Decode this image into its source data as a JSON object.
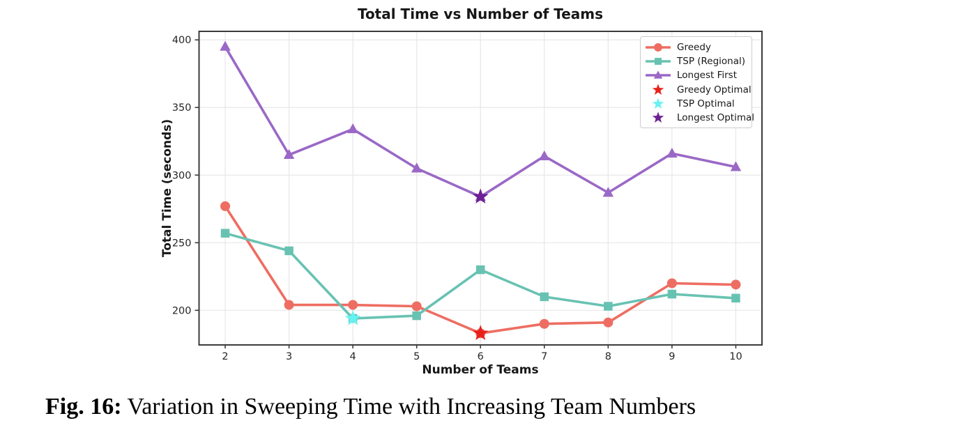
{
  "figure": {
    "caption_label": "Fig. 16:",
    "caption_text": " Variation in Sweeping Time with Increasing Team Numbers"
  },
  "chart_data": {
    "type": "line",
    "title": "Total Time vs Number of Teams",
    "xlabel": "Number of Teams",
    "ylabel": "Total Time (seconds)",
    "x": [
      2,
      3,
      4,
      5,
      6,
      7,
      8,
      9,
      10
    ],
    "xticks": [
      2,
      3,
      4,
      5,
      6,
      7,
      8,
      9,
      10
    ],
    "yticks": [
      200,
      250,
      300,
      350,
      400
    ],
    "xlim": [
      1.59,
      10.41
    ],
    "ylim": [
      174.4,
      406.3
    ],
    "grid": true,
    "legend_position": "upper right",
    "series": [
      {
        "name": "Greedy",
        "color": "#EE6D62",
        "marker": "circle",
        "values": [
          277,
          204,
          204,
          203,
          183,
          190,
          191,
          220,
          219
        ]
      },
      {
        "name": "TSP (Regional)",
        "color": "#68C2B2",
        "marker": "square",
        "values": [
          257,
          244,
          194,
          196,
          230,
          210,
          203,
          212,
          209
        ]
      },
      {
        "name": "Longest First",
        "color": "#9A68C6",
        "marker": "triangle",
        "values": [
          395,
          315,
          334,
          305,
          284,
          314,
          287,
          316,
          306
        ]
      }
    ],
    "optimal_points": [
      {
        "name": "Greedy Optimal",
        "color": "#E8211A",
        "marker": "star",
        "x": 6,
        "y": 183
      },
      {
        "name": "TSP Optimal",
        "color": "#67F2F2",
        "marker": "star",
        "x": 4,
        "y": 194
      },
      {
        "name": "Longest Optimal",
        "color": "#6E2094",
        "marker": "star",
        "x": 6,
        "y": 284
      }
    ],
    "colors": {
      "grid": "#E7E7E7",
      "spine": "#3B3B3B",
      "tick_label": "#262626",
      "background": "#FFFFFF"
    }
  }
}
